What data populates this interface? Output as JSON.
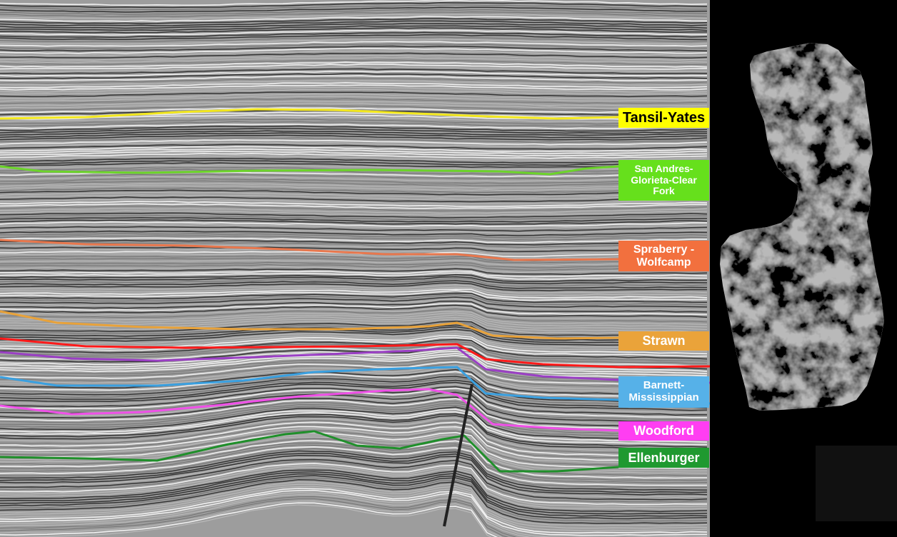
{
  "horizons": [
    {
      "label": "Tansil-Yates",
      "color": "#f3e81e",
      "label_bg": "#ffff00",
      "text_color": "#000000"
    },
    {
      "label": "San Andres-Glorieta-Clear Fork",
      "color": "#6cd42a",
      "label_bg": "#66e01c",
      "text_color": "#ffffff"
    },
    {
      "label": "Spraberry - Wolfcamp",
      "color": "#e8774d",
      "label_bg": "#f2703e",
      "text_color": "#ffffff"
    },
    {
      "label": "Strawn",
      "color": "#e8a23a",
      "label_bg": "#eaa33a",
      "text_color": "#ffffff"
    },
    {
      "label": "",
      "color": "#ff1a1a"
    },
    {
      "label": "",
      "color": "#9a3fc4"
    },
    {
      "label": "Barnett-Mississippian",
      "color": "#3aa0e0",
      "label_bg": "#56b1e8",
      "text_color": "#ffffff"
    },
    {
      "label": "Woodford",
      "color": "#f050e8",
      "label_bg": "#ff3ef2",
      "text_color": "#ffffff"
    },
    {
      "label": "Ellenburger",
      "color": "#1f8f2a",
      "label_bg": "#1f9930",
      "text_color": "#ffffff"
    }
  ],
  "fault": {
    "color": "#222222"
  },
  "colors": {
    "seismic_bg": "#9d9d9d",
    "panel_bg": "#000000"
  }
}
